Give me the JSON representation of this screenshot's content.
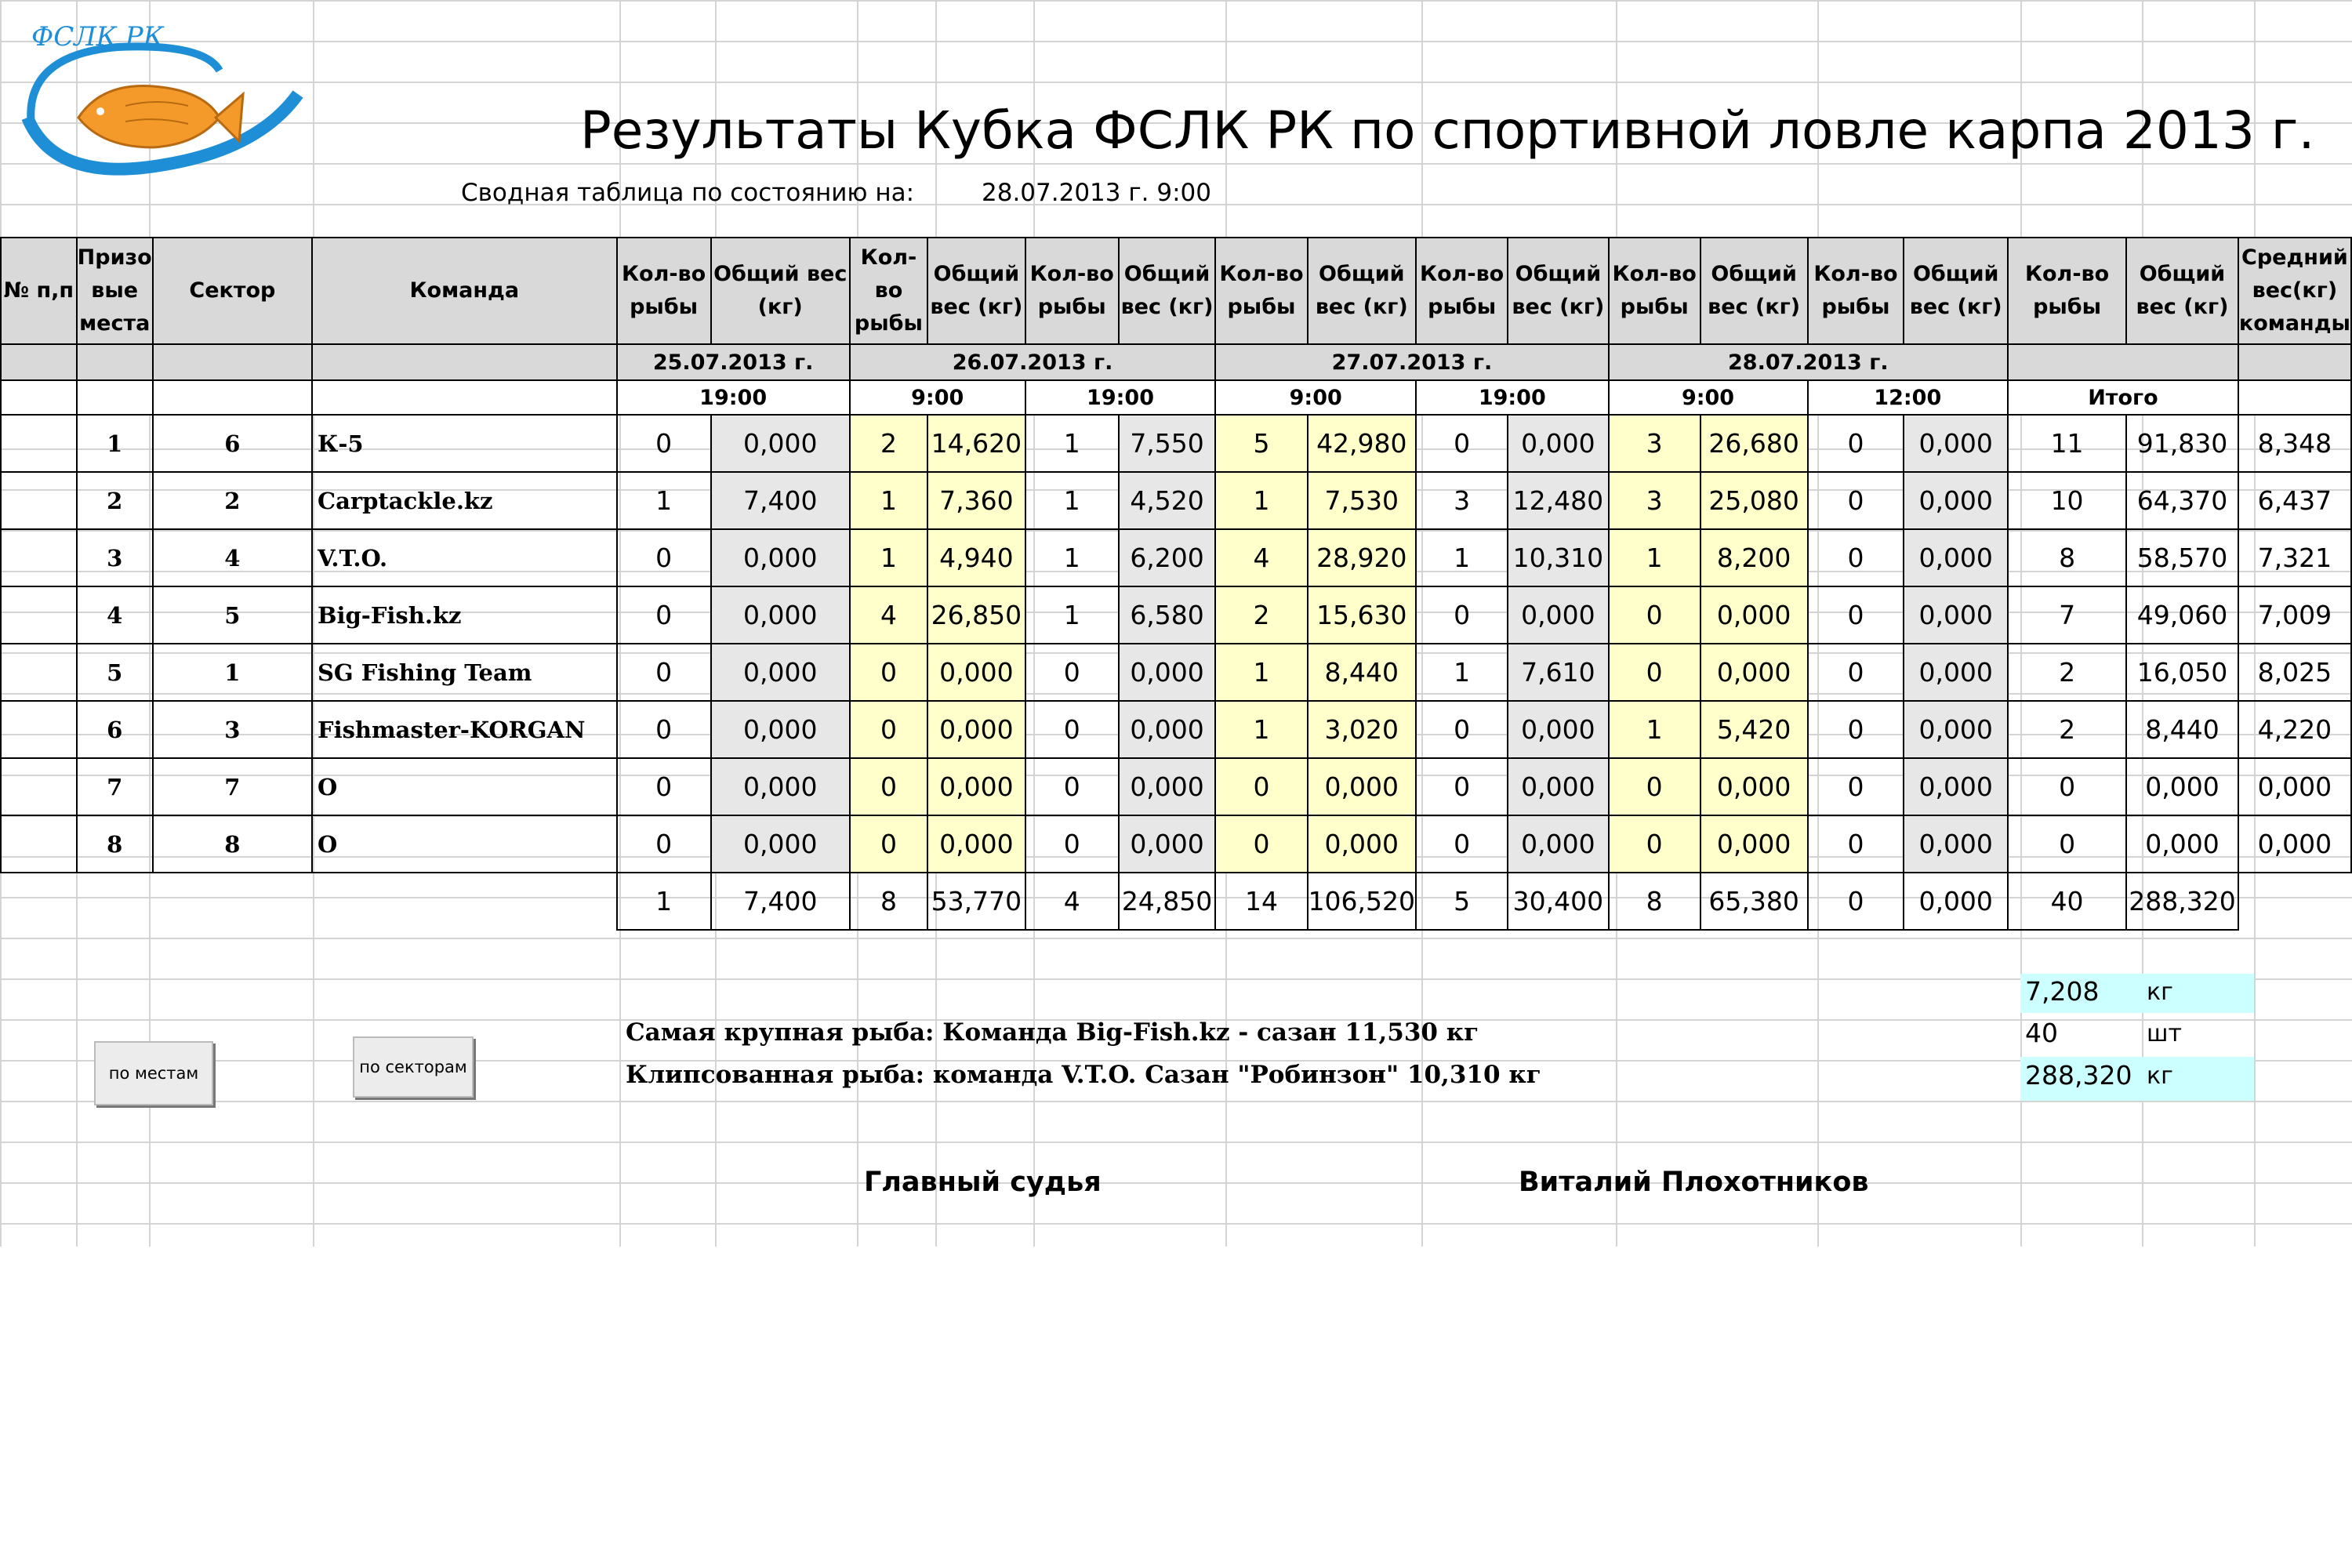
{
  "logo": {
    "text": "ФСЛК РК"
  },
  "title": "Результаты Кубка ФСЛК РК по спортивной ловле карпа 2013 г.",
  "summary": {
    "label": "Сводная таблица по состоянию на:",
    "value": "28.07.2013 г. 9:00"
  },
  "headers": {
    "num": "№ п,п",
    "place": "Призо вые места",
    "sector": "Сектор",
    "team": "Команда",
    "count": "Кол-во рыбы",
    "weight": "Общий вес (кг)",
    "avg": "Средний вес(кг) команды"
  },
  "dates": [
    "25.07.2013 г.",
    "26.07.2013 г.",
    "27.07.2013 г.",
    "28.07.2013 г."
  ],
  "times": [
    "19:00",
    "9:00",
    "19:00",
    "9:00",
    "19:00",
    "9:00",
    "12:00",
    "Итого"
  ],
  "rows": [
    {
      "place": "1",
      "sector": "6",
      "team": "К-5",
      "v": [
        "0",
        "0,000",
        "2",
        "14,620",
        "1",
        "7,550",
        "5",
        "42,980",
        "0",
        "0,000",
        "3",
        "26,680",
        "0",
        "0,000",
        "11",
        "91,830",
        "8,348"
      ]
    },
    {
      "place": "2",
      "sector": "2",
      "team": "Carptackle.kz",
      "v": [
        "1",
        "7,400",
        "1",
        "7,360",
        "1",
        "4,520",
        "1",
        "7,530",
        "3",
        "12,480",
        "3",
        "25,080",
        "0",
        "0,000",
        "10",
        "64,370",
        "6,437"
      ]
    },
    {
      "place": "3",
      "sector": "4",
      "team": "V.T.O.",
      "v": [
        "0",
        "0,000",
        "1",
        "4,940",
        "1",
        "6,200",
        "4",
        "28,920",
        "1",
        "10,310",
        "1",
        "8,200",
        "0",
        "0,000",
        "8",
        "58,570",
        "7,321"
      ]
    },
    {
      "place": "4",
      "sector": "5",
      "team": "Big-Fish.kz",
      "v": [
        "0",
        "0,000",
        "4",
        "26,850",
        "1",
        "6,580",
        "2",
        "15,630",
        "0",
        "0,000",
        "0",
        "0,000",
        "0",
        "0,000",
        "7",
        "49,060",
        "7,009"
      ]
    },
    {
      "place": "5",
      "sector": "1",
      "team": "SG Fishing Team",
      "v": [
        "0",
        "0,000",
        "0",
        "0,000",
        "0",
        "0,000",
        "1",
        "8,440",
        "1",
        "7,610",
        "0",
        "0,000",
        "0",
        "0,000",
        "2",
        "16,050",
        "8,025"
      ]
    },
    {
      "place": "6",
      "sector": "3",
      "team": "Fishmaster-KORGAN",
      "v": [
        "0",
        "0,000",
        "0",
        "0,000",
        "0",
        "0,000",
        "1",
        "3,020",
        "0",
        "0,000",
        "1",
        "5,420",
        "0",
        "0,000",
        "2",
        "8,440",
        "4,220"
      ]
    },
    {
      "place": "7",
      "sector": "7",
      "team": "О",
      "v": [
        "0",
        "0,000",
        "0",
        "0,000",
        "0",
        "0,000",
        "0",
        "0,000",
        "0",
        "0,000",
        "0",
        "0,000",
        "0",
        "0,000",
        "0",
        "0,000",
        "0,000"
      ]
    },
    {
      "place": "8",
      "sector": "8",
      "team": "О",
      "v": [
        "0",
        "0,000",
        "0",
        "0,000",
        "0",
        "0,000",
        "0",
        "0,000",
        "0",
        "0,000",
        "0",
        "0,000",
        "0",
        "0,000",
        "0",
        "0,000",
        "0,000"
      ]
    }
  ],
  "totals": [
    "1",
    "7,400",
    "8",
    "53,770",
    "4",
    "24,850",
    "14",
    "106,520",
    "5",
    "30,400",
    "8",
    "65,380",
    "0",
    "0,000",
    "40",
    "288,320"
  ],
  "notes": {
    "biggest": "Самая крупная рыба: Команда   Big-Fish.kz   -   сазан 11,530 кг",
    "clipped": "Клипсованная рыба: команда V.T.O. Сазан \"Робинзон\" 10,310 кг"
  },
  "stats": [
    {
      "value": "7,208",
      "unit": "кг"
    },
    {
      "value": "40",
      "unit": "шт"
    },
    {
      "value": "288,320",
      "unit": "кг"
    }
  ],
  "buttons": {
    "by_place": "по местам",
    "by_sector": "по секторам"
  },
  "judge": {
    "label": "Главный судья",
    "name": "Виталий Плохотников"
  },
  "colors": {
    "yellow": "#ffffcc",
    "gray": "#d9d9d9",
    "cyan": "#ccffff",
    "logo_blue": "#1e8fd6",
    "logo_orange": "#f39a2b"
  }
}
